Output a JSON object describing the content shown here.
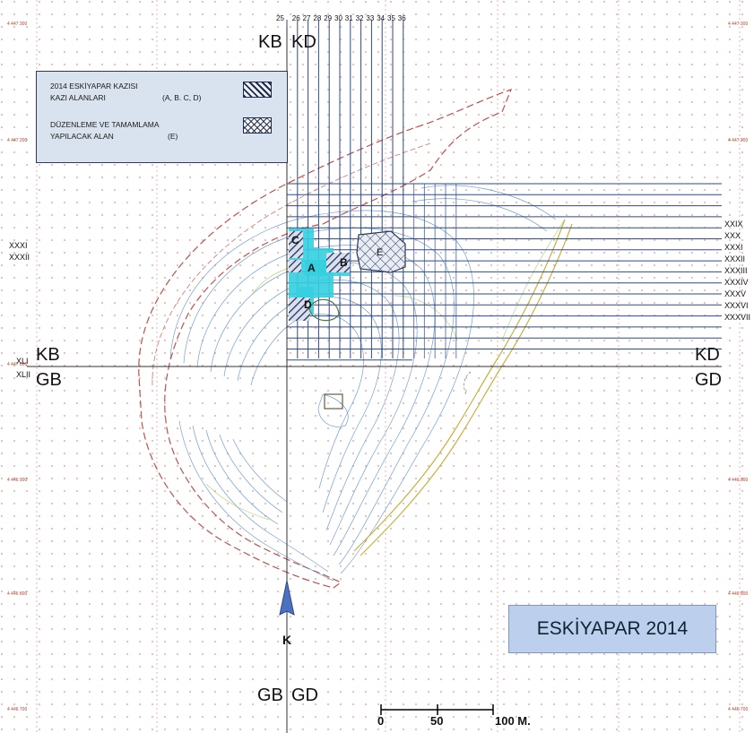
{
  "legend": {
    "item1_line1": "2014 ESKİYAPAR KAZISI",
    "item1_line2": "KAZI ALANLARI",
    "item1_areas": "(A, B. C, D)",
    "item2_line1": "DÜZENLEME VE TAMAMLAMA",
    "item2_line2": "YAPILACAK ALAN",
    "item2_areas": "(E)"
  },
  "title": "ESKİYAPAR 2014",
  "quadrants": {
    "kb": "KB",
    "kd": "KD",
    "gb": "GB",
    "gd": "GD"
  },
  "north_label": "K",
  "column_numbers": [
    "25",
    "26",
    "27",
    "28",
    "29",
    "30",
    "31",
    "32",
    "33",
    "34",
    "35",
    "36"
  ],
  "row_labels_right": [
    "XXIX",
    "XXX",
    "XXXI",
    "XXXII",
    "XXXIII",
    "XXXIV",
    "XXXV",
    "XXXVI",
    "XXXVII"
  ],
  "row_labels_left": [
    "XXXI",
    "XXXII"
  ],
  "row_labels_axis": [
    "XLI",
    "XLII"
  ],
  "area_labels": [
    "A",
    "B",
    "C",
    "D",
    "E"
  ],
  "scale": {
    "zero": "0",
    "mid": "50",
    "end": "100 M."
  },
  "grid_coordinates": [
    "4 447 300",
    "4 447 200",
    "4 447 000",
    "4 446 900",
    "4 446 800",
    "4 446 700"
  ],
  "colors": {
    "grid_line": "#2e4a86",
    "contour": "#5b8fc9",
    "excavated": "#35cfe0",
    "hatch": "#1e2c4a",
    "red_dash": "#c0504d",
    "legend_bg": "#d9e3ef",
    "title_bg": "#bcd0ee"
  }
}
